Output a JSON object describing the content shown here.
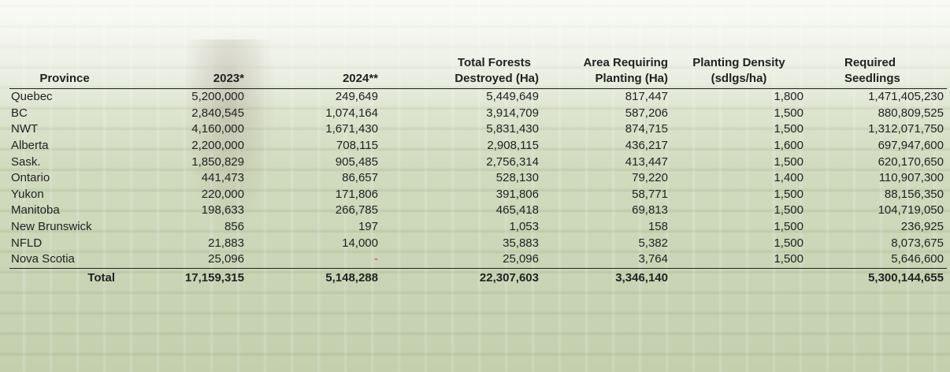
{
  "headers": {
    "province": "Province",
    "y2023": "2023*",
    "y2024": "2024**",
    "total_forests_line1": "Total Forests",
    "total_forests_line2": "Destroyed (Ha)",
    "area_requiring_line1": "Area Requiring",
    "area_requiring_line2": "Planting (Ha)",
    "planting_density_line1": "Planting Density",
    "planting_density_line2": "(sdlgs/ha)",
    "required_seedlings_line1": "Required",
    "required_seedlings_line2": "Seedlings"
  },
  "rows": [
    {
      "province": "Quebec",
      "y2023": "5,200,000",
      "y2024": "249,649",
      "total_destroyed": "5,449,649",
      "area_requiring": "817,447",
      "density": "1,800",
      "seedlings": "1,471,405,230"
    },
    {
      "province": "BC",
      "y2023": "2,840,545",
      "y2024": "1,074,164",
      "total_destroyed": "3,914,709",
      "area_requiring": "587,206",
      "density": "1,500",
      "seedlings": "880,809,525"
    },
    {
      "province": "NWT",
      "y2023": "4,160,000",
      "y2024": "1,671,430",
      "total_destroyed": "5,831,430",
      "area_requiring": "874,715",
      "density": "1,500",
      "seedlings": "1,312,071,750"
    },
    {
      "province": "Alberta",
      "y2023": "2,200,000",
      "y2024": "708,115",
      "total_destroyed": "2,908,115",
      "area_requiring": "436,217",
      "density": "1,600",
      "seedlings": "697,947,600"
    },
    {
      "province": "Sask.",
      "y2023": "1,850,829",
      "y2024": "905,485",
      "total_destroyed": "2,756,314",
      "area_requiring": "413,447",
      "density": "1,500",
      "seedlings": "620,170,650"
    },
    {
      "province": "Ontario",
      "y2023": "441,473",
      "y2024": "86,657",
      "total_destroyed": "528,130",
      "area_requiring": "79,220",
      "density": "1,400",
      "seedlings": "110,907,300"
    },
    {
      "province": "Yukon",
      "y2023": "220,000",
      "y2024": "171,806",
      "total_destroyed": "391,806",
      "area_requiring": "58,771",
      "density": "1,500",
      "seedlings": "88,156,350"
    },
    {
      "province": "Manitoba",
      "y2023": "198,633",
      "y2024": "266,785",
      "total_destroyed": "465,418",
      "area_requiring": "69,813",
      "density": "1,500",
      "seedlings": "104,719,050"
    },
    {
      "province": "New Brunswick",
      "y2023": "856",
      "y2024": "197",
      "total_destroyed": "1,053",
      "area_requiring": "158",
      "density": "1,500",
      "seedlings": "236,925"
    },
    {
      "province": "NFLD",
      "y2023": "21,883",
      "y2024": "14,000",
      "total_destroyed": "35,883",
      "area_requiring": "5,382",
      "density": "1,500",
      "seedlings": "8,073,675"
    },
    {
      "province": "Nova Scotia",
      "y2023": "25,096",
      "y2024": "-",
      "total_destroyed": "25,096",
      "area_requiring": "3,764",
      "density": "1,500",
      "seedlings": "5,646,600"
    }
  ],
  "total": {
    "label": "Total",
    "y2023": "17,159,315",
    "y2024": "5,148,288",
    "total_destroyed": "22,307,603",
    "area_requiring": "3,346,140",
    "density": "",
    "seedlings": "5,300,144,655"
  },
  "colors": {
    "dash": "#e03030",
    "text": "#222222"
  }
}
